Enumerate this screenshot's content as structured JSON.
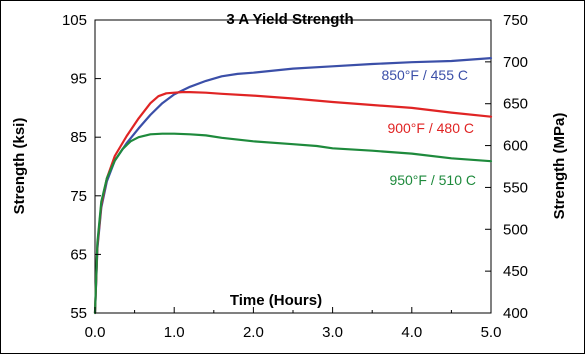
{
  "chart_data": {
    "type": "line",
    "title": "3 A Yield Strength",
    "xlabel": "Time (Hours)",
    "ylabel": "Strength (ksi)",
    "y2label": "Strength (MPa)",
    "xlim": [
      0.0,
      5.0
    ],
    "ylim": [
      55,
      105
    ],
    "y2lim": [
      400,
      750
    ],
    "x_ticks": [
      "0.0",
      "1.0",
      "2.0",
      "3.0",
      "4.0",
      "5.0"
    ],
    "y_ticks": [
      "55",
      "65",
      "75",
      "85",
      "95",
      "105"
    ],
    "y2_ticks": [
      "400",
      "450",
      "500",
      "550",
      "600",
      "650",
      "700",
      "750"
    ],
    "grid": false,
    "series": [
      {
        "name": "850°F / 455 C",
        "color": "#3b4fa8",
        "x": [
          0.0,
          0.03,
          0.08,
          0.15,
          0.25,
          0.4,
          0.55,
          0.7,
          0.85,
          1.0,
          1.2,
          1.4,
          1.6,
          1.8,
          2.0,
          2.5,
          3.0,
          3.5,
          4.0,
          4.5,
          5.0
        ],
        "y": [
          55.0,
          66.0,
          73.0,
          77.5,
          81.0,
          84.0,
          86.5,
          88.8,
          90.8,
          92.3,
          93.6,
          94.6,
          95.4,
          95.8,
          96.0,
          96.7,
          97.1,
          97.5,
          97.8,
          98.0,
          98.5
        ]
      },
      {
        "name": "900°F / 480 C",
        "color": "#e02424",
        "x": [
          0.0,
          0.03,
          0.08,
          0.15,
          0.25,
          0.4,
          0.55,
          0.7,
          0.8,
          0.9,
          1.0,
          1.1,
          1.2,
          1.4,
          1.6,
          2.0,
          2.5,
          3.0,
          3.5,
          4.0,
          4.5,
          5.0
        ],
        "y": [
          55.0,
          66.5,
          73.5,
          78.0,
          81.8,
          85.2,
          88.2,
          90.8,
          92.0,
          92.5,
          92.6,
          92.7,
          92.7,
          92.6,
          92.4,
          92.1,
          91.6,
          91.0,
          90.5,
          90.0,
          89.2,
          88.5
        ]
      },
      {
        "name": "950°F / 510 C",
        "color": "#1e8a3c",
        "x": [
          0.0,
          0.03,
          0.08,
          0.15,
          0.25,
          0.35,
          0.45,
          0.55,
          0.7,
          0.85,
          1.0,
          1.2,
          1.4,
          1.6,
          2.0,
          2.5,
          2.8,
          3.0,
          3.5,
          4.0,
          4.5,
          5.0
        ],
        "y": [
          55.0,
          67.0,
          74.0,
          78.0,
          81.0,
          83.0,
          84.3,
          85.0,
          85.5,
          85.6,
          85.6,
          85.5,
          85.3,
          84.9,
          84.3,
          83.8,
          83.5,
          83.1,
          82.7,
          82.2,
          81.4,
          80.9
        ]
      }
    ]
  }
}
